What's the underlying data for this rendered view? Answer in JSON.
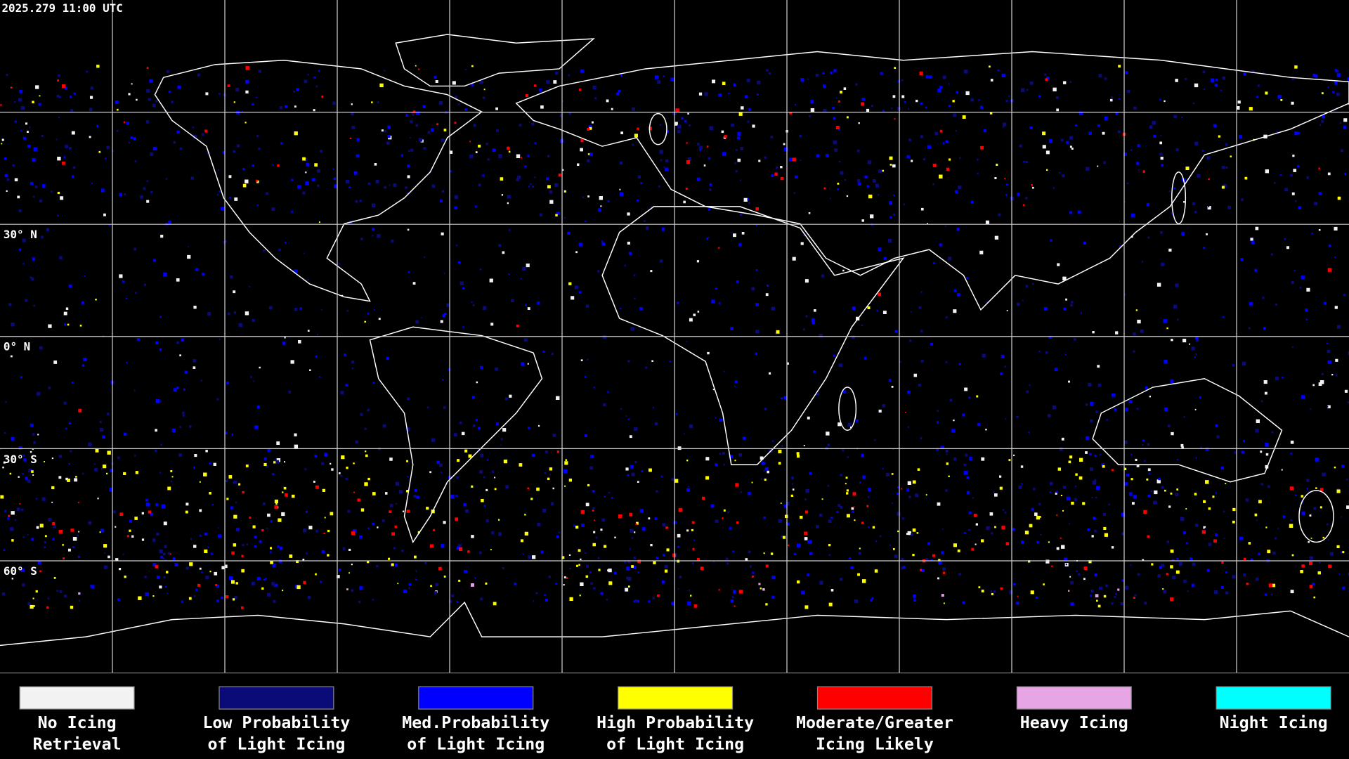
{
  "header": {
    "timestamp": "2025.279 11:00 UTC"
  },
  "map": {
    "lat_labels": [
      "30° N",
      "0° N",
      "30° S",
      "60° S"
    ]
  },
  "legend": {
    "items": [
      {
        "lines": [
          "No Icing",
          "Retrieval"
        ],
        "color": "#f2f2f2"
      },
      {
        "lines": [
          "Low Probability",
          "of Light Icing"
        ],
        "color": "#0a0a78"
      },
      {
        "lines": [
          "Med.Probability",
          "of Light Icing"
        ],
        "color": "#0000ff"
      },
      {
        "lines": [
          "High Probability",
          "of Light Icing"
        ],
        "color": "#ffff00"
      },
      {
        "lines": [
          "Moderate/Greater",
          "Icing Likely"
        ],
        "color": "#ff0000"
      },
      {
        "lines": [
          "Heavy Icing"
        ],
        "color": "#e6a6e6"
      },
      {
        "lines": [
          "Night Icing"
        ],
        "color": "#00ffff"
      }
    ]
  }
}
